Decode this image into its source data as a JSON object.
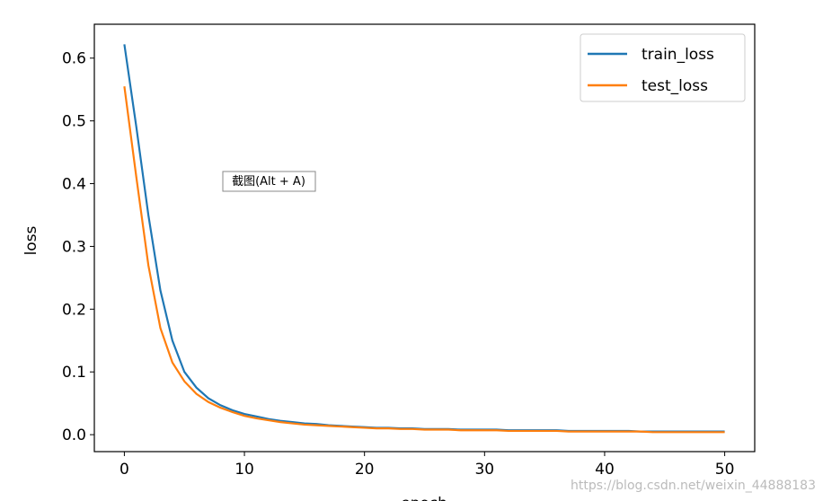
{
  "chart_data": {
    "type": "line",
    "xlabel": "epoch",
    "ylabel": "loss",
    "x": [
      0,
      1,
      2,
      3,
      4,
      5,
      6,
      7,
      8,
      9,
      10,
      11,
      12,
      13,
      14,
      15,
      16,
      17,
      18,
      19,
      20,
      21,
      22,
      23,
      24,
      25,
      26,
      27,
      28,
      29,
      30,
      31,
      32,
      33,
      34,
      35,
      36,
      37,
      38,
      39,
      40,
      41,
      42,
      43,
      44,
      45,
      46,
      47,
      48,
      49,
      50
    ],
    "series": [
      {
        "name": "train_loss",
        "color": "#1f77b4",
        "values": [
          0.622,
          0.49,
          0.35,
          0.23,
          0.15,
          0.1,
          0.075,
          0.058,
          0.047,
          0.039,
          0.033,
          0.029,
          0.025,
          0.022,
          0.02,
          0.018,
          0.017,
          0.015,
          0.014,
          0.013,
          0.012,
          0.011,
          0.011,
          0.01,
          0.01,
          0.009,
          0.009,
          0.009,
          0.008,
          0.008,
          0.008,
          0.008,
          0.007,
          0.007,
          0.007,
          0.007,
          0.007,
          0.006,
          0.006,
          0.006,
          0.006,
          0.006,
          0.006,
          0.005,
          0.005,
          0.005,
          0.005,
          0.005,
          0.005,
          0.005,
          0.005
        ]
      },
      {
        "name": "test_loss",
        "color": "#ff7f0e",
        "values": [
          0.555,
          0.41,
          0.27,
          0.17,
          0.115,
          0.085,
          0.065,
          0.052,
          0.043,
          0.036,
          0.03,
          0.026,
          0.023,
          0.02,
          0.018,
          0.016,
          0.015,
          0.014,
          0.013,
          0.012,
          0.011,
          0.01,
          0.01,
          0.009,
          0.009,
          0.008,
          0.008,
          0.008,
          0.007,
          0.007,
          0.007,
          0.007,
          0.006,
          0.006,
          0.006,
          0.006,
          0.006,
          0.005,
          0.005,
          0.005,
          0.005,
          0.005,
          0.005,
          0.005,
          0.004,
          0.004,
          0.004,
          0.004,
          0.004,
          0.004,
          0.004
        ]
      }
    ],
    "xlim": [
      -2.5,
      52.5
    ],
    "xticks": [
      0,
      10,
      20,
      30,
      40,
      50
    ],
    "ylim": [
      -0.027,
      0.654
    ],
    "yticks": [
      {
        "value": 0,
        "label": "0.0"
      },
      0.1,
      0.2,
      0.3,
      0.4,
      0.5,
      0.6
    ],
    "legend": "upper right",
    "grid": false
  },
  "tooltip": "截图(Alt + A)",
  "watermark": "https://blog.csdn.net/weixin_44888183"
}
